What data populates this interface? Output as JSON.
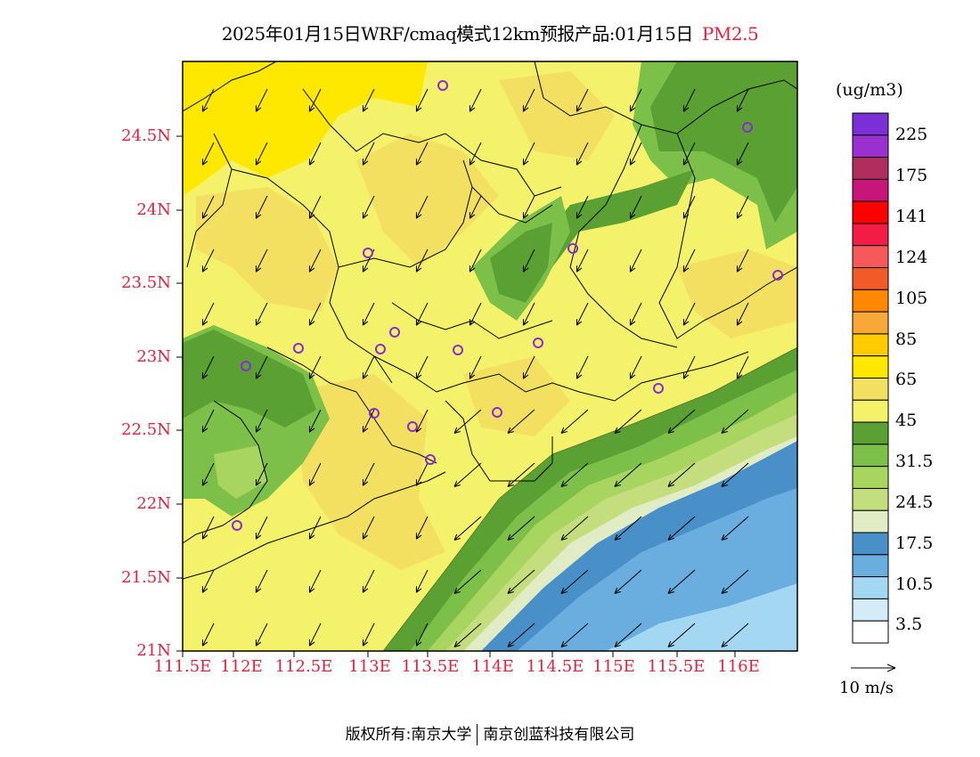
{
  "title": {
    "main": "2025年01月15日WRF/cmaq模式12km预报产品:01月15日",
    "species": "PM2.5"
  },
  "axes": {
    "y_ticks": [
      "24.5N",
      "24N",
      "23.5N",
      "23N",
      "22.5N",
      "22N",
      "21.5N",
      "21N"
    ],
    "x_ticks": [
      "111.5E",
      "112E",
      "112.5E",
      "113E",
      "113.5E",
      "114E",
      "114.5E",
      "115E",
      "115.5E",
      "116E"
    ]
  },
  "colorbar": {
    "unit": "(ug/m3)",
    "colors": [
      "#7b2fd6",
      "#9b30d0",
      "#b02e5e",
      "#c8157a",
      "#ff0000",
      "#f21c44",
      "#f55a5a",
      "#f25a28",
      "#ff8800",
      "#f8a838",
      "#ffcc00",
      "#ffe800",
      "#f4e060",
      "#f4f26a",
      "#5aa032",
      "#7cc04a",
      "#a8d460",
      "#c4de7e",
      "#e2ecc4",
      "#4a90c8",
      "#6aaee0",
      "#a4d8f2",
      "#d4ecf8",
      "#ffffff"
    ],
    "labels": [
      "225",
      "175",
      "141",
      "124",
      "105",
      "85",
      "65",
      "45",
      "31.5",
      "24.5",
      "17.5",
      "10.5",
      "3.5"
    ]
  },
  "legend": {
    "vector_label": "10 m/s"
  },
  "footer": {
    "left": "版权所有:南京大学",
    "right": "南京创蓝科技有限公司"
  }
}
